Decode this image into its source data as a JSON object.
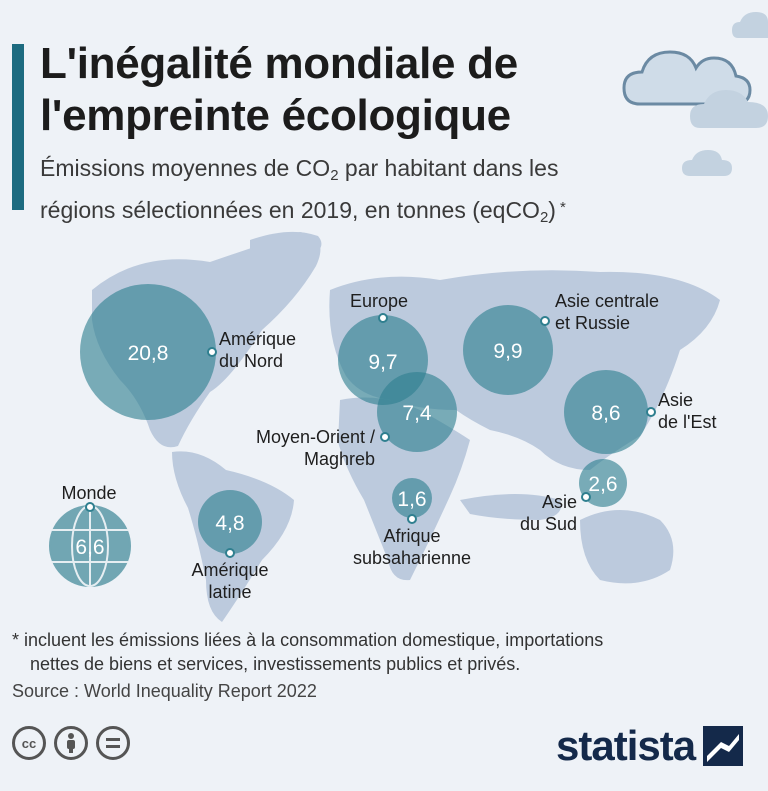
{
  "title": [
    "L'inégalité mondiale de",
    "l'empreinte écologique"
  ],
  "subtitle": {
    "line1_before": "Émissions moyennes de CO",
    "line1_sub": "2",
    "line1_after": " par habitant dans les",
    "line2_before": "régions sélectionnées en 2019, en tonnes (eqCO",
    "line2_sub": "2",
    "line2_after": ")",
    "asterisk": "*"
  },
  "regions": {
    "north_america": {
      "label": [
        "Amérique",
        "du Nord"
      ],
      "value": "20,8"
    },
    "europe": {
      "label": [
        "Europe"
      ],
      "value": "9,7"
    },
    "middle_east": {
      "label": [
        "Moyen-Orient /",
        "Maghreb"
      ],
      "value": "7,4"
    },
    "central_asia_russia": {
      "label": [
        "Asie centrale",
        "et Russie"
      ],
      "value": "9,9"
    },
    "east_asia": {
      "label": [
        "Asie",
        "de l'Est"
      ],
      "value": "8,6"
    },
    "south_asia": {
      "label": [
        "Asie",
        "du Sud"
      ],
      "value": "2,6"
    },
    "sub_saharan_africa": {
      "label": [
        "Afrique",
        "subsaharienne"
      ],
      "value": "1,6"
    },
    "latin_america": {
      "label": [
        "Amérique",
        "latine"
      ],
      "value": "4,8"
    },
    "world": {
      "label": [
        "Monde"
      ],
      "value": "6,6"
    }
  },
  "footnote": [
    "* incluent les émissions liées à la consommation domestique, importations",
    "nettes de biens et services, investissements publics et privés."
  ],
  "source": "Source : World Inequality Report 2022",
  "license_icons": [
    "cc-icon",
    "by-icon",
    "nd-icon"
  ],
  "license_icon_text": {
    "cc": "cc"
  },
  "brand": "statista",
  "colors": {
    "accent": "#1d6b80",
    "land": "#bccadd",
    "bubble": "#2f7f8f",
    "brand": "#14294a"
  }
}
